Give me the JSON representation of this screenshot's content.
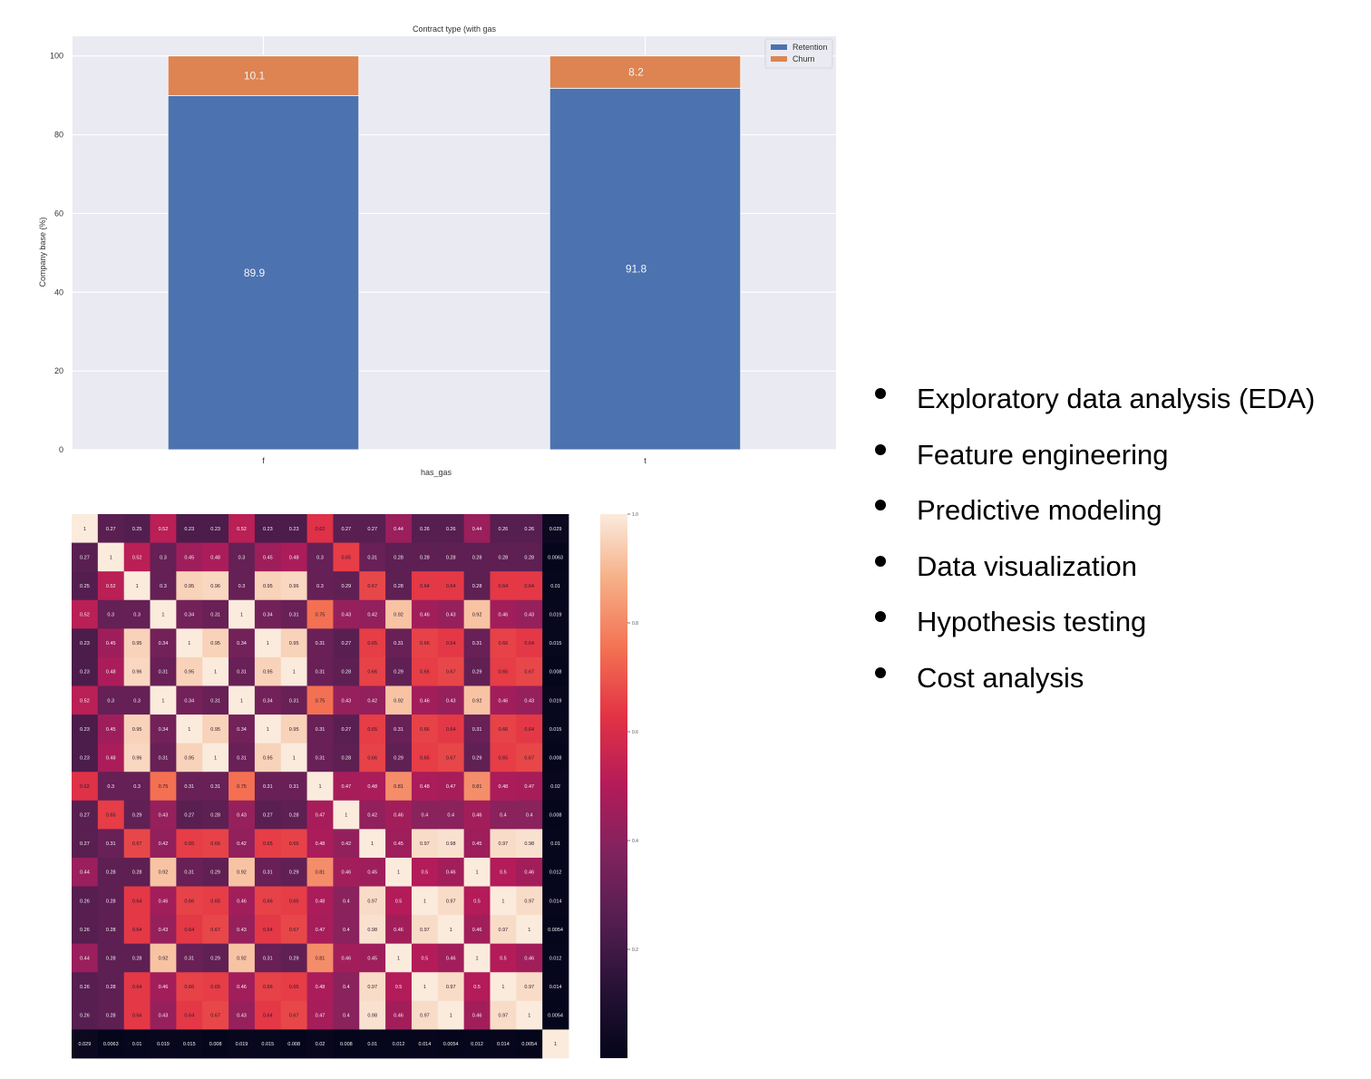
{
  "chart_data": [
    {
      "type": "bar",
      "stacked": true,
      "title": "Contract type (with gas",
      "xlabel": "has_gas",
      "ylabel": "Company base (%)",
      "categories": [
        "f",
        "t"
      ],
      "series": [
        {
          "name": "Retention",
          "values": [
            89.9,
            91.8
          ],
          "color": "#4c72b0"
        },
        {
          "name": "Churn",
          "values": [
            10.1,
            8.2
          ],
          "color": "#dd8452"
        }
      ],
      "ylim": [
        0,
        105
      ],
      "yticks": [
        0,
        20,
        40,
        60,
        80,
        100
      ],
      "grid": true,
      "legend_position": "top-right"
    },
    {
      "type": "heatmap",
      "colormap": "rocket",
      "vmin": 0,
      "vmax": 1,
      "colorbar_ticks": [
        "1.0",
        "0.8",
        "0.6",
        "0.4",
        "0.2"
      ],
      "matrix": [
        [
          1,
          0.27,
          0.25,
          0.52,
          0.23,
          0.23,
          0.52,
          0.23,
          0.23,
          0.62,
          0.27,
          0.27,
          0.44,
          0.26,
          0.26,
          0.44,
          0.26,
          0.26,
          0.029
        ],
        [
          0.27,
          1,
          0.52,
          0.3,
          0.45,
          0.48,
          0.3,
          0.45,
          0.48,
          0.3,
          0.65,
          0.31,
          0.28,
          0.28,
          0.28,
          0.28,
          0.28,
          0.28,
          0.0063
        ],
        [
          0.25,
          0.52,
          1,
          0.3,
          0.95,
          0.96,
          0.3,
          0.95,
          0.96,
          0.3,
          0.29,
          0.67,
          0.28,
          0.64,
          0.64,
          0.28,
          0.64,
          0.64,
          0.01
        ],
        [
          0.52,
          0.3,
          0.3,
          1,
          0.34,
          0.31,
          1,
          0.34,
          0.31,
          0.75,
          0.43,
          0.42,
          0.92,
          0.46,
          0.43,
          0.92,
          0.46,
          0.43,
          0.019
        ],
        [
          0.23,
          0.45,
          0.95,
          0.34,
          1,
          0.95,
          0.34,
          1,
          0.95,
          0.31,
          0.27,
          0.65,
          0.31,
          0.66,
          0.64,
          0.31,
          0.66,
          0.64,
          0.015
        ],
        [
          0.23,
          0.48,
          0.96,
          0.31,
          0.95,
          1,
          0.31,
          0.95,
          1,
          0.31,
          0.28,
          0.66,
          0.29,
          0.65,
          0.67,
          0.29,
          0.65,
          0.67,
          0.008
        ],
        [
          0.52,
          0.3,
          0.3,
          1,
          0.34,
          0.31,
          1,
          0.34,
          0.31,
          0.75,
          0.43,
          0.42,
          0.92,
          0.46,
          0.43,
          0.92,
          0.46,
          0.43,
          0.019
        ],
        [
          0.23,
          0.45,
          0.95,
          0.34,
          1,
          0.95,
          0.34,
          1,
          0.95,
          0.31,
          0.27,
          0.65,
          0.31,
          0.66,
          0.64,
          0.31,
          0.66,
          0.64,
          0.015
        ],
        [
          0.23,
          0.48,
          0.96,
          0.31,
          0.95,
          1,
          0.31,
          0.95,
          1,
          0.31,
          0.28,
          0.66,
          0.29,
          0.65,
          0.67,
          0.29,
          0.65,
          0.67,
          0.008
        ],
        [
          0.62,
          0.3,
          0.3,
          0.75,
          0.31,
          0.31,
          0.75,
          0.31,
          0.31,
          1,
          0.47,
          0.48,
          0.81,
          0.48,
          0.47,
          0.81,
          0.48,
          0.47,
          0.02
        ],
        [
          0.27,
          0.65,
          0.29,
          0.43,
          0.27,
          0.28,
          0.43,
          0.27,
          0.28,
          0.47,
          1,
          0.42,
          0.46,
          0.4,
          0.4,
          0.46,
          0.4,
          0.4,
          0.008
        ],
        [
          0.27,
          0.31,
          0.67,
          0.42,
          0.65,
          0.66,
          0.42,
          0.65,
          0.66,
          0.48,
          0.42,
          1,
          0.45,
          0.97,
          0.98,
          0.45,
          0.97,
          0.98,
          0.01
        ],
        [
          0.44,
          0.28,
          0.28,
          0.92,
          0.31,
          0.29,
          0.92,
          0.31,
          0.29,
          0.81,
          0.46,
          0.45,
          1,
          0.5,
          0.46,
          1,
          0.5,
          0.46,
          0.012
        ],
        [
          0.26,
          0.28,
          0.64,
          0.46,
          0.66,
          0.65,
          0.46,
          0.66,
          0.65,
          0.48,
          0.4,
          0.97,
          0.5,
          1,
          0.97,
          0.5,
          1,
          0.97,
          0.014
        ],
        [
          0.26,
          0.28,
          0.64,
          0.43,
          0.64,
          0.67,
          0.43,
          0.64,
          0.67,
          0.47,
          0.4,
          0.98,
          0.46,
          0.97,
          1,
          0.46,
          0.97,
          1,
          0.0054
        ],
        [
          0.44,
          0.28,
          0.28,
          0.92,
          0.31,
          0.29,
          0.92,
          0.31,
          0.29,
          0.81,
          0.46,
          0.45,
          1,
          0.5,
          0.46,
          1,
          0.5,
          0.46,
          0.012
        ],
        [
          0.26,
          0.28,
          0.64,
          0.46,
          0.66,
          0.65,
          0.46,
          0.66,
          0.65,
          0.48,
          0.4,
          0.97,
          0.5,
          1,
          0.97,
          0.5,
          1,
          0.97,
          0.014
        ],
        [
          0.26,
          0.28,
          0.64,
          0.43,
          0.64,
          0.67,
          0.43,
          0.64,
          0.67,
          0.47,
          0.4,
          0.98,
          0.46,
          0.97,
          1,
          0.46,
          0.97,
          1,
          0.0054
        ],
        [
          0.029,
          0.0063,
          0.01,
          0.019,
          0.015,
          0.008,
          0.019,
          0.015,
          0.008,
          0.02,
          0.008,
          0.01,
          0.012,
          0.014,
          0.0054,
          0.012,
          0.014,
          0.0054,
          1
        ]
      ]
    }
  ],
  "bullets": [
    "Exploratory data analysis (EDA)",
    "Feature engineering",
    "Predictive modeling",
    "Data visualization",
    "Hypothesis testing",
    "Cost analysis"
  ]
}
